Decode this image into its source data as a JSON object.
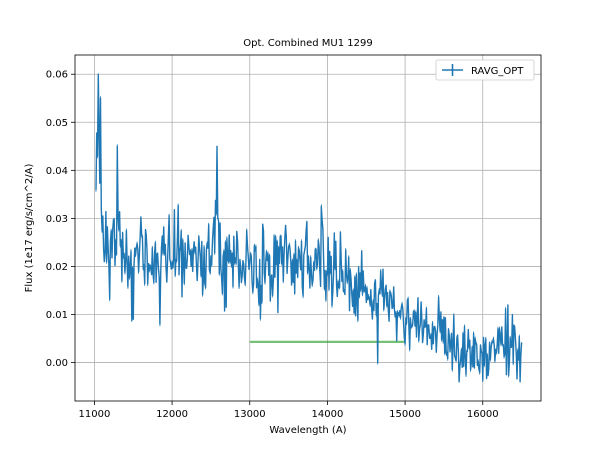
{
  "chart_data": {
    "type": "line",
    "title": "Opt. Combined MU1 1299",
    "xlabel": "Wavelength (A)",
    "ylabel": "Flux (1e17 erg/s/cm^2/A)",
    "xlim": [
      10750,
      16750
    ],
    "ylim": [
      -0.008,
      0.064
    ],
    "xticks": [
      11000,
      12000,
      13000,
      14000,
      15000,
      16000
    ],
    "xtick_labels": [
      "11000",
      "12000",
      "13000",
      "14000",
      "15000",
      "16000"
    ],
    "yticks": [
      0.0,
      0.01,
      0.02,
      0.03,
      0.04,
      0.05,
      0.06
    ],
    "ytick_labels": [
      "0.00",
      "0.01",
      "0.02",
      "0.03",
      "0.04",
      "0.05",
      "0.06"
    ],
    "grid": true,
    "legend_position": "top-right",
    "series": [
      {
        "name": "RAVG_OPT",
        "color": "#1f77b4",
        "style": "errorbar-line",
        "x_start": 11020,
        "x_end": 16500,
        "n_points": 560,
        "envelope": {
          "x": [
            11020,
            11050,
            11100,
            11200,
            11300,
            11400,
            11500,
            11600,
            11700,
            11800,
            11900,
            12000,
            12100,
            12200,
            12300,
            12400,
            12500,
            12550,
            12600,
            12700,
            12800,
            12900,
            13000,
            13200,
            13400,
            13600,
            13800,
            14000,
            14200,
            14400,
            14600,
            14700,
            14800,
            15000,
            15200,
            15400,
            15600,
            15800,
            16000,
            16200,
            16400,
            16500
          ],
          "y": [
            0.038,
            0.05,
            0.026,
            0.024,
            0.026,
            0.023,
            0.022,
            0.023,
            0.022,
            0.021,
            0.023,
            0.024,
            0.021,
            0.02,
            0.022,
            0.021,
            0.024,
            0.031,
            0.026,
            0.02,
            0.021,
            0.021,
            0.019,
            0.02,
            0.021,
            0.02,
            0.021,
            0.02,
            0.018,
            0.015,
            0.013,
            0.015,
            0.011,
            0.01,
            0.008,
            0.006,
            0.004,
            0.003,
            0.003,
            0.003,
            0.004,
            0.003
          ]
        },
        "noise_amplitude": 0.0075,
        "extremes": [
          {
            "x": 11045,
            "y": 0.06
          },
          {
            "x": 11080,
            "y": 0.055
          },
          {
            "x": 11290,
            "y": 0.045
          },
          {
            "x": 12580,
            "y": 0.045
          },
          {
            "x": 11500,
            "y": 0.009
          },
          {
            "x": 11840,
            "y": 0.008
          },
          {
            "x": 14650,
            "y": 0.0
          },
          {
            "x": 15700,
            "y": -0.004
          },
          {
            "x": 16480,
            "y": -0.004
          },
          {
            "x": 16320,
            "y": 0.012
          }
        ]
      },
      {
        "name": "",
        "color": "#2ca02c",
        "style": "segment",
        "x": [
          13000,
          15000
        ],
        "values": [
          0.0043,
          0.0043
        ]
      }
    ]
  }
}
